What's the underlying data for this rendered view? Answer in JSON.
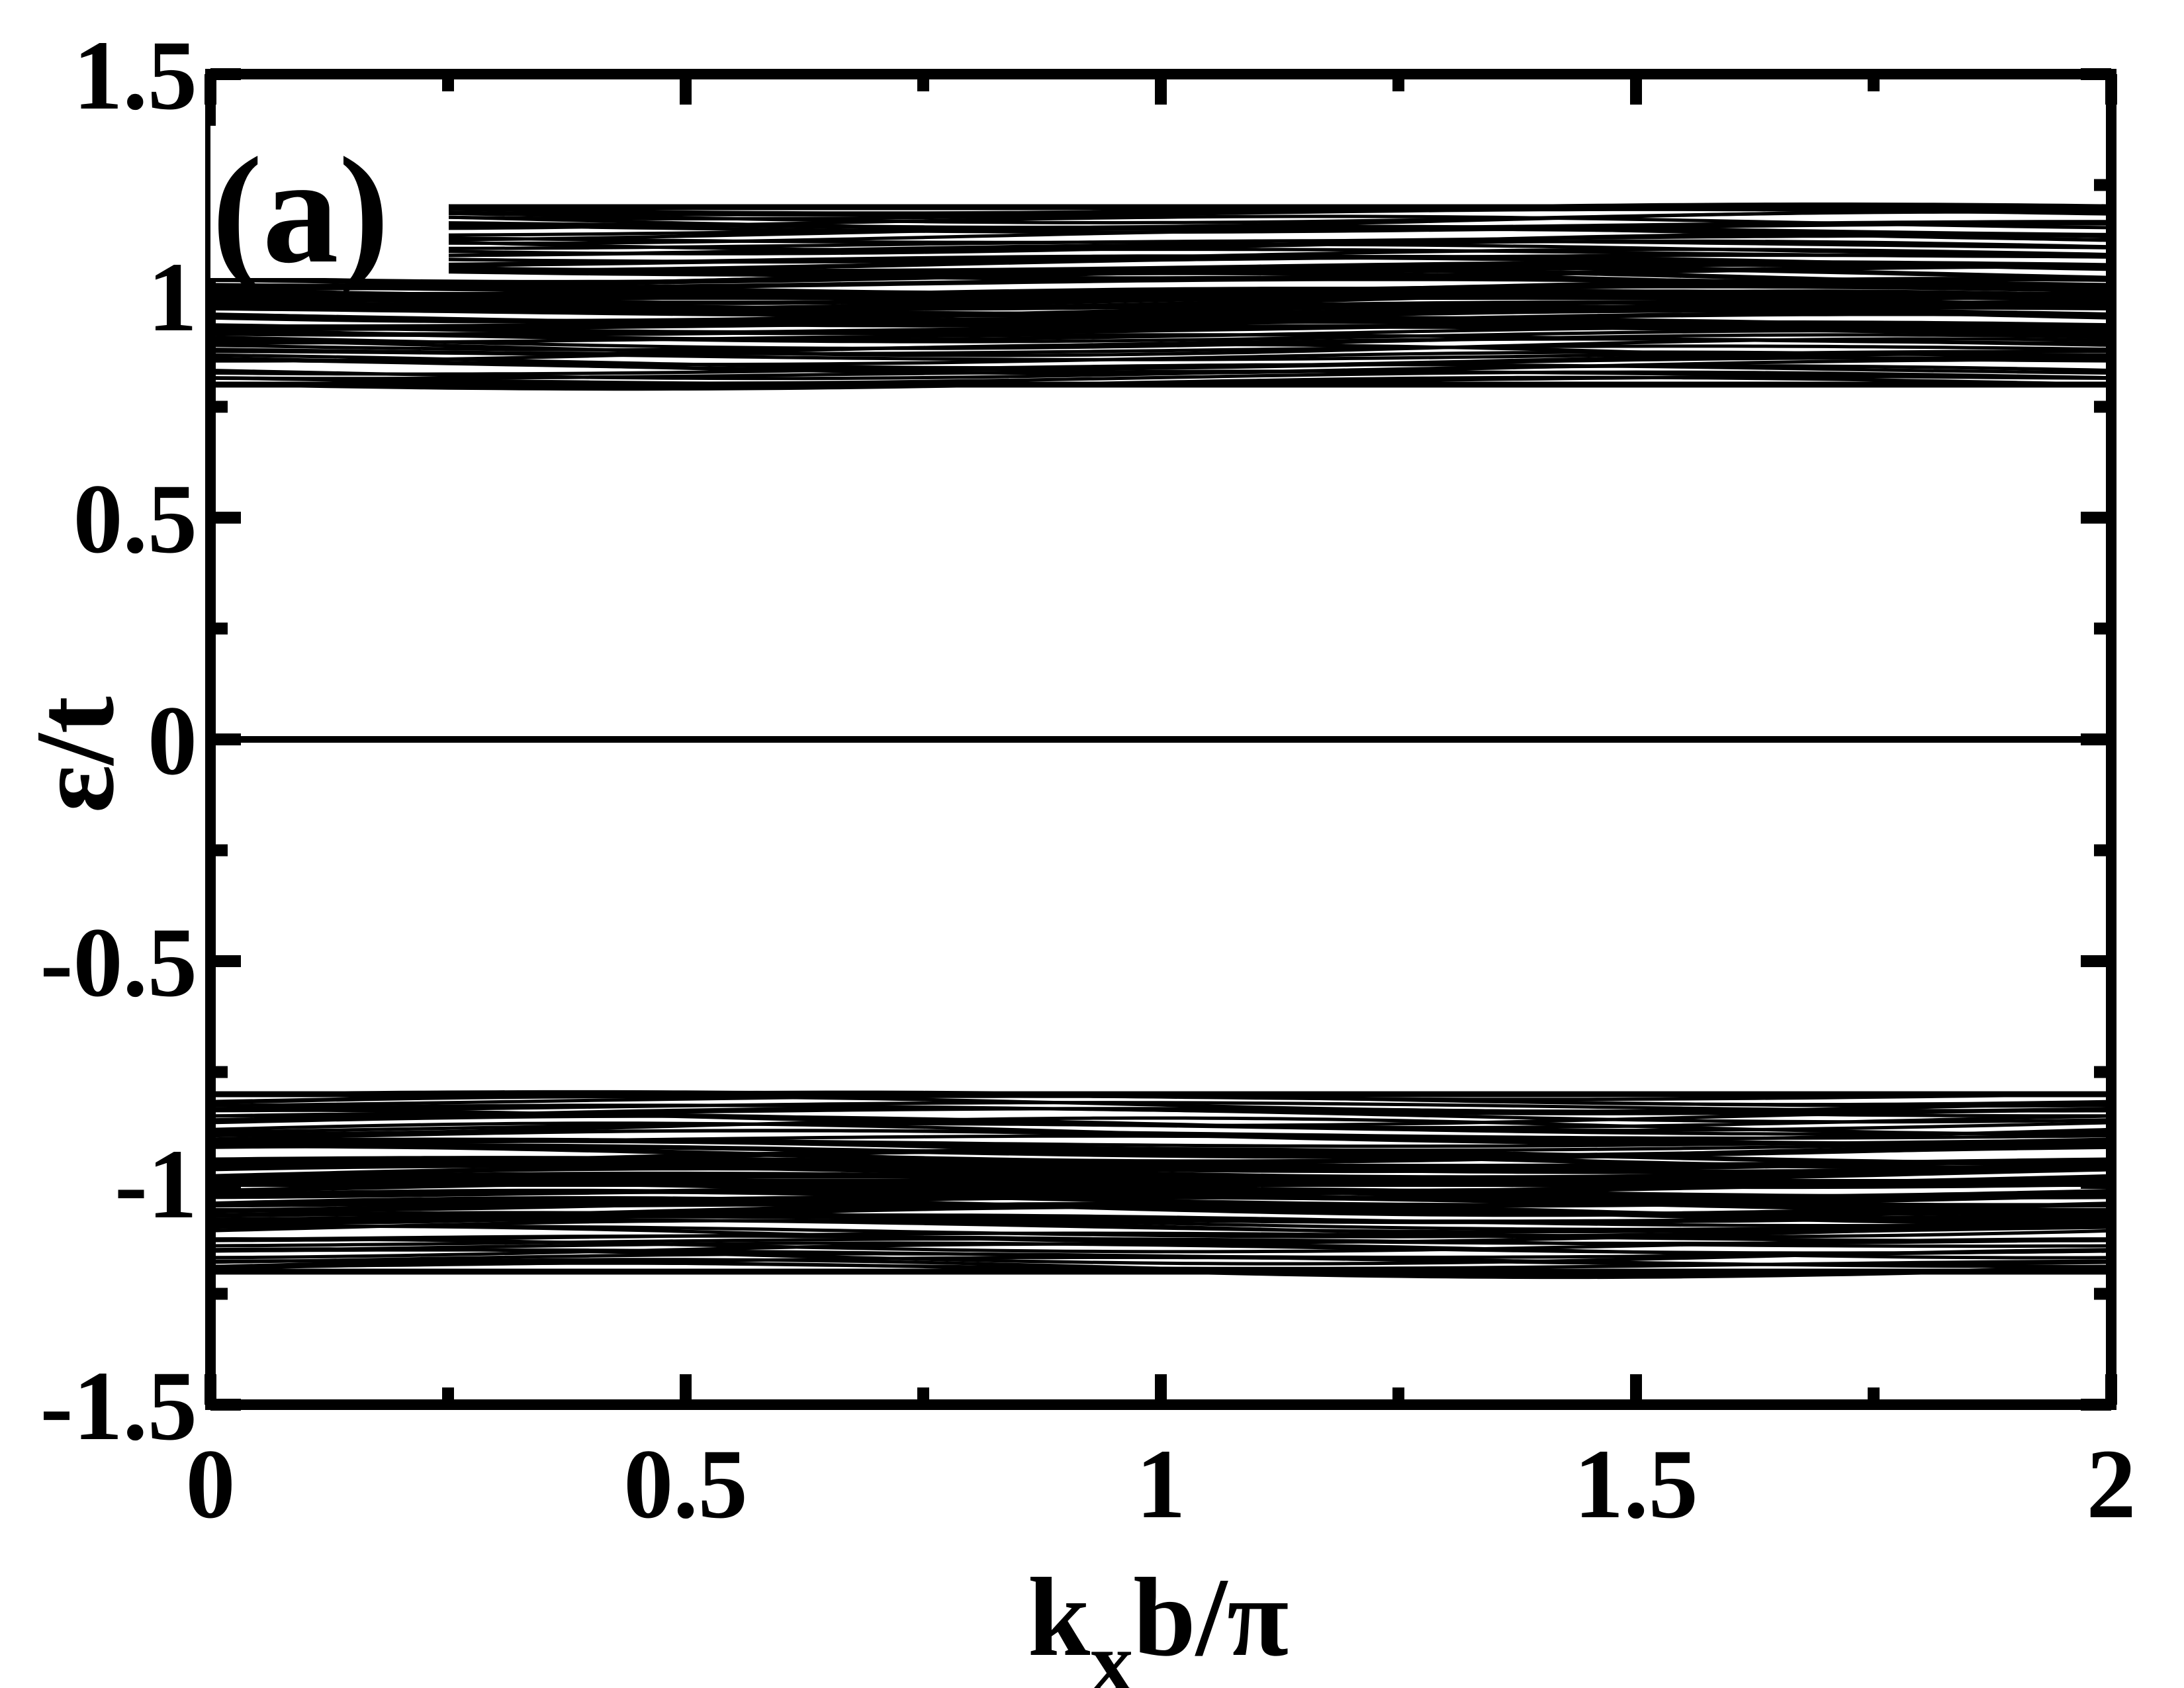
{
  "chart_data": {
    "type": "line",
    "panel_label": "(a)",
    "xlabel_main": "k",
    "xlabel_sub": "x",
    "xlabel_rest": "b/π",
    "ylabel": "ε/t",
    "xlim": [
      0,
      2
    ],
    "ylim": [
      -1.5,
      1.5
    ],
    "x_ticks": [
      0,
      0.5,
      1,
      1.5,
      2
    ],
    "x_tick_labels": [
      "0",
      "0.5",
      "1",
      "1.5",
      "2"
    ],
    "x_minor_ticks": [
      0.25,
      0.75,
      1.25,
      1.75
    ],
    "y_ticks": [
      -1.5,
      -1,
      -0.5,
      0,
      0.5,
      1,
      1.5
    ],
    "y_tick_labels": [
      "-1.5",
      "-1",
      "-0.5",
      "0",
      "0.5",
      "1",
      "1.5"
    ],
    "y_minor_ticks": [
      -1.25,
      -0.75,
      -0.25,
      0.25,
      0.75,
      1.25
    ],
    "grid": false,
    "legend": "none",
    "series": [
      {
        "values": [
          0,
          0,
          0,
          0,
          0
        ]
      }
    ],
    "band_structure": {
      "upper_band": {
        "min": 0.8,
        "max": 1.2,
        "dense_center": 1.0
      },
      "lower_band": {
        "min": -1.2,
        "max": -0.8,
        "dense_center": -1.0
      },
      "zero_mode": 0.0
    },
    "line_color": "#000000"
  }
}
